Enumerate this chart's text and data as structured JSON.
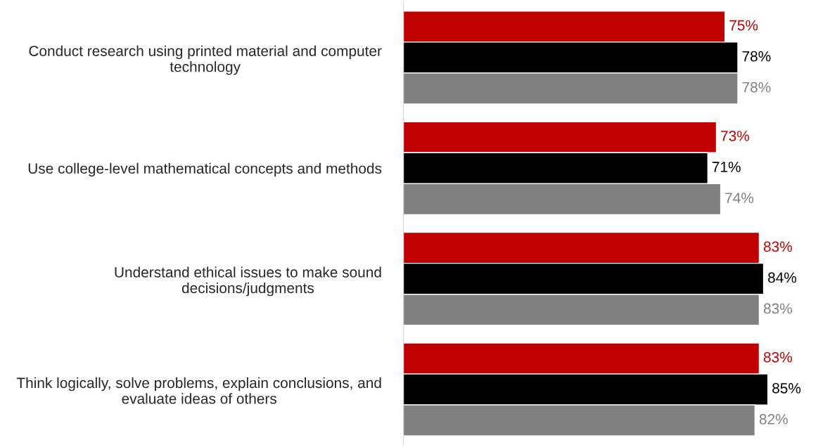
{
  "chart_data": {
    "type": "bar",
    "orientation": "horizontal",
    "categories": [
      "Conduct research using printed material and computer technology",
      "Use college-level mathematical concepts and methods",
      "Understand ethical issues to make sound decisions/judgments",
      "Think logically, solve problems, explain conclusions, and evaluate ideas of others"
    ],
    "series": [
      {
        "color": "#c00000",
        "values": [
          75,
          73,
          83,
          83
        ],
        "value_labels": [
          "75%",
          "73%",
          "83%",
          "83%"
        ]
      },
      {
        "color": "#000000",
        "values": [
          78,
          71,
          84,
          85
        ],
        "value_labels": [
          "78%",
          "71%",
          "84%",
          "85%"
        ]
      },
      {
        "color": "#808080",
        "values": [
          78,
          74,
          83,
          82
        ],
        "value_labels": [
          "78%",
          "74%",
          "83%",
          "82%"
        ]
      }
    ],
    "grid": false,
    "legend": false
  }
}
